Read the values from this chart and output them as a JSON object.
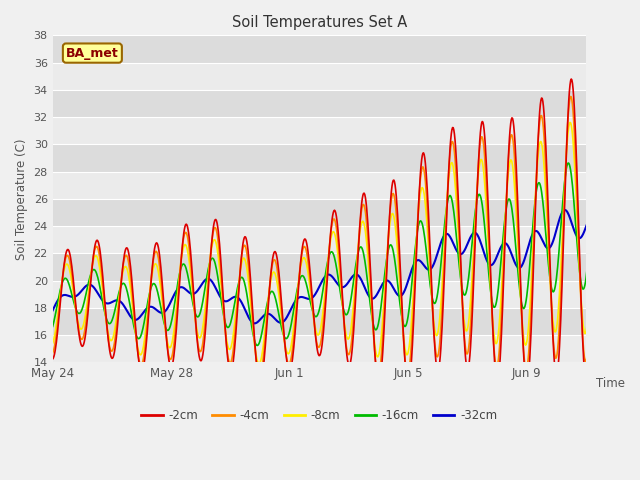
{
  "title": "Soil Temperatures Set A",
  "xlabel": "Time",
  "ylabel": "Soil Temperature (C)",
  "ylim": [
    14,
    38
  ],
  "yticks": [
    14,
    16,
    18,
    20,
    22,
    24,
    26,
    28,
    30,
    32,
    34,
    36,
    38
  ],
  "n_days": 19,
  "points_per_day": 48,
  "annotation_text": "BA_met",
  "lines": [
    {
      "label": "-2cm",
      "color": "#dd0000",
      "linewidth": 1.2,
      "amp_scale": 1.0,
      "phase": 0.0,
      "base_amp": 5.0
    },
    {
      "label": "-4cm",
      "color": "#ff8c00",
      "linewidth": 1.2,
      "amp_scale": 0.88,
      "phase": 0.12,
      "base_amp": 5.0
    },
    {
      "label": "-8cm",
      "color": "#ffee00",
      "linewidth": 1.2,
      "amp_scale": 0.7,
      "phase": 0.25,
      "base_amp": 5.0
    },
    {
      "label": "-16cm",
      "color": "#00bb00",
      "linewidth": 1.2,
      "amp_scale": 0.42,
      "phase": 0.65,
      "base_amp": 5.0
    },
    {
      "label": "-32cm",
      "color": "#0000cc",
      "linewidth": 1.5,
      "amp_scale": 0.1,
      "phase": 1.5,
      "base_amp": 5.0
    }
  ],
  "xtick_labels": [
    "May 24",
    "May 28",
    "Jun 1",
    "Jun 5",
    "Jun 9"
  ],
  "xtick_days": [
    0,
    4,
    8,
    12,
    16
  ],
  "figsize": [
    6.4,
    4.8
  ],
  "dpi": 100,
  "fig_facecolor": "#f0f0f0",
  "ax_facecolor": "#dcdcdc"
}
